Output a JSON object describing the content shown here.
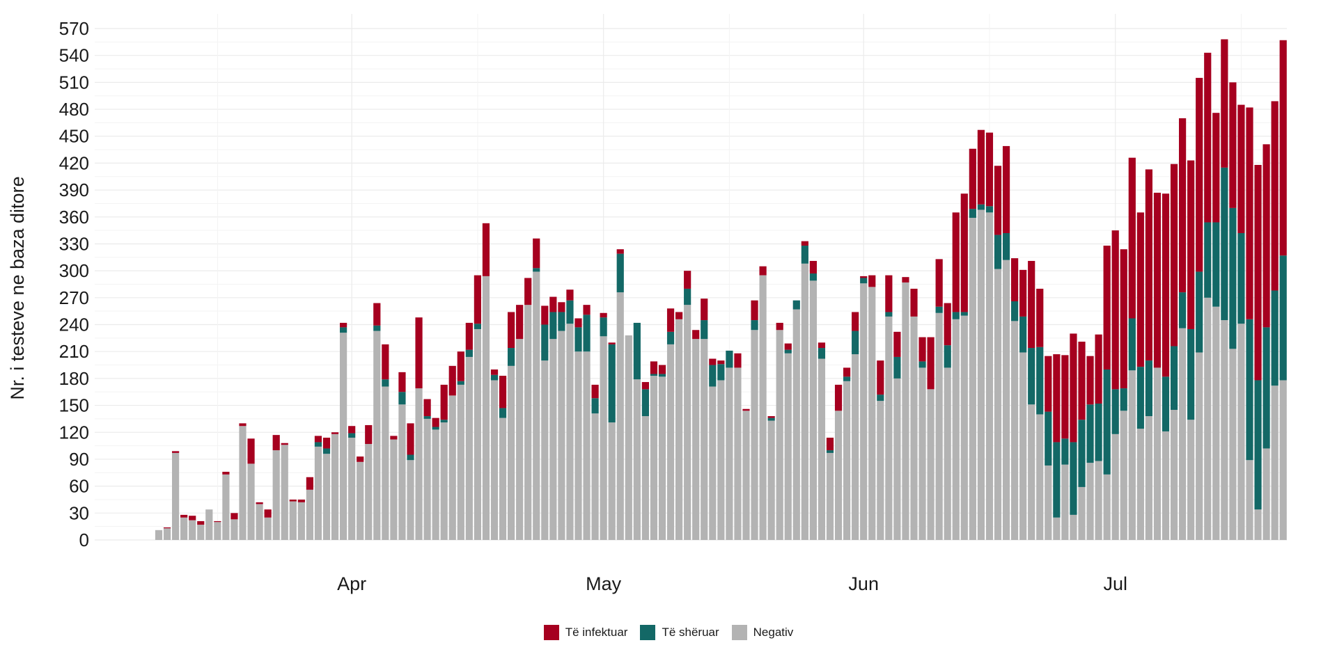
{
  "chart_data": {
    "type": "bar",
    "stacked": true,
    "title": "",
    "xlabel": "",
    "ylabel": "Nr. i testeve ne baza ditore",
    "ylim": [
      0,
      590
    ],
    "yticks": [
      0,
      30,
      60,
      90,
      120,
      150,
      180,
      210,
      240,
      270,
      300,
      330,
      360,
      390,
      420,
      450,
      480,
      510,
      540,
      570
    ],
    "x_start_date": "2020-03-09",
    "x_ticks": [
      {
        "label": "Apr",
        "date": "2020-04-01"
      },
      {
        "label": "May",
        "date": "2020-05-01"
      },
      {
        "label": "Jun",
        "date": "2020-06-01"
      },
      {
        "label": "Jul",
        "date": "2020-07-01"
      }
    ],
    "grid": true,
    "legend_position": "bottom",
    "series": [
      {
        "name": "Negativ",
        "color": "#b3b3b3",
        "values": [
          11,
          13,
          97,
          25,
          22,
          17,
          34,
          20,
          73,
          23,
          127,
          85,
          40,
          25,
          100,
          106,
          43,
          42,
          56,
          104,
          96,
          118,
          231,
          114,
          87,
          107,
          233,
          171,
          112,
          151,
          89,
          169,
          135,
          123,
          131,
          161,
          173,
          204,
          235,
          294,
          178,
          136,
          194,
          224,
          262,
          299,
          200,
          224,
          233,
          241,
          210,
          210,
          141,
          227,
          131,
          276,
          228,
          179,
          138,
          183,
          182,
          218,
          246,
          262,
          224,
          224,
          171,
          178,
          192,
          192,
          144,
          234,
          295,
          133,
          234,
          208,
          257,
          308,
          289,
          202,
          97,
          144,
          177,
          207,
          286,
          282,
          155,
          249,
          180,
          287,
          249,
          192,
          168,
          253,
          192,
          246,
          250,
          359,
          368,
          365,
          302,
          312,
          244,
          209,
          151,
          140,
          83,
          25,
          84,
          28,
          59,
          86,
          88,
          73,
          118,
          144,
          189,
          124,
          138,
          192,
          121,
          145,
          236,
          134,
          209,
          270,
          260,
          245,
          213,
          241,
          89,
          34,
          102,
          172,
          178
        ]
      },
      {
        "name": "Të shëruar",
        "color": "#136866",
        "values": [
          0,
          0,
          0,
          0,
          0,
          0,
          0,
          0,
          0,
          0,
          0,
          0,
          0,
          0,
          0,
          0,
          0,
          0,
          0,
          5,
          6,
          0,
          6,
          5,
          0,
          0,
          6,
          8,
          0,
          14,
          6,
          0,
          3,
          3,
          3,
          0,
          4,
          8,
          6,
          0,
          6,
          11,
          20,
          0,
          0,
          4,
          40,
          30,
          21,
          26,
          27,
          41,
          17,
          21,
          87,
          43,
          0,
          63,
          30,
          2,
          3,
          14,
          0,
          18,
          0,
          21,
          24,
          18,
          19,
          0,
          0,
          11,
          0,
          3,
          0,
          4,
          10,
          20,
          8,
          12,
          3,
          0,
          5,
          26,
          6,
          0,
          7,
          5,
          24,
          0,
          0,
          7,
          0,
          7,
          25,
          8,
          4,
          10,
          6,
          7,
          38,
          30,
          22,
          40,
          63,
          75,
          60,
          84,
          29,
          81,
          75,
          65,
          64,
          117,
          50,
          25,
          58,
          69,
          62,
          0,
          61,
          71,
          40,
          101,
          90,
          84,
          94,
          170,
          157,
          101,
          157,
          144,
          135,
          106,
          139
        ]
      },
      {
        "name": "Të infektuar",
        "color": "#a6001f",
        "values": [
          0,
          1,
          2,
          3,
          5,
          4,
          0,
          1,
          3,
          7,
          3,
          28,
          2,
          9,
          17,
          2,
          2,
          3,
          14,
          7,
          12,
          2,
          5,
          8,
          6,
          21,
          25,
          39,
          4,
          22,
          35,
          79,
          19,
          10,
          39,
          33,
          33,
          30,
          54,
          59,
          6,
          36,
          40,
          38,
          30,
          33,
          21,
          17,
          11,
          12,
          10,
          11,
          15,
          5,
          2,
          5,
          0,
          0,
          8,
          14,
          10,
          26,
          8,
          20,
          10,
          24,
          7,
          4,
          0,
          16,
          2,
          22,
          10,
          2,
          8,
          7,
          0,
          5,
          14,
          6,
          14,
          29,
          10,
          21,
          2,
          13,
          38,
          41,
          28,
          6,
          31,
          27,
          58,
          53,
          47,
          111,
          132,
          67,
          83,
          82,
          77,
          97,
          48,
          52,
          97,
          65,
          62,
          98,
          93,
          121,
          87,
          54,
          77,
          138,
          177,
          155,
          179,
          172,
          213,
          195,
          204,
          203,
          194,
          188,
          216,
          189,
          122,
          143,
          140,
          143,
          236,
          240,
          204,
          211,
          240
        ]
      }
    ]
  },
  "legend": {
    "items": [
      {
        "label": "Të infektuar",
        "color": "#a6001f"
      },
      {
        "label": "Të shëruar",
        "color": "#136866"
      },
      {
        "label": "Negativ",
        "color": "#b3b3b3"
      }
    ]
  }
}
